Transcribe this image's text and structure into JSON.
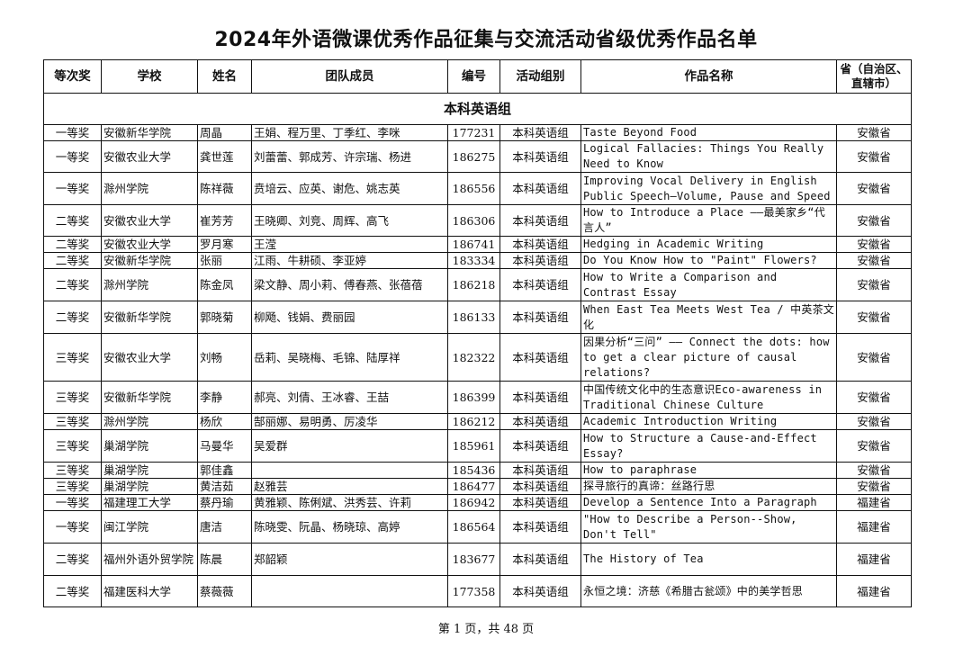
{
  "title": "2024年外语微课优秀作品征集与交流活动省级优秀作品名单",
  "headers": [
    "等次奖",
    "学校",
    "姓名",
    "团队成员",
    "编号",
    "活动组别",
    "作品名称",
    "省（自治区、直辖市）"
  ],
  "section": "本科英语组",
  "rows": [
    [
      "一等奖",
      "安徽新华学院",
      "周晶",
      "王娟、程万里、丁季红、李咪",
      "177231",
      "本科英语组",
      "Taste Beyond Food",
      "安徽省"
    ],
    [
      "一等奖",
      "安徽农业大学",
      "龚世莲",
      "刘蕾蕾、郭成芳、许宗瑞、杨进",
      "186275",
      "本科英语组",
      "Logical Fallacies: Things You Really Need to Know",
      "安徽省"
    ],
    [
      "一等奖",
      "滁州学院",
      "陈祥薇",
      "贲培云、应英、谢危、姚志英",
      "186556",
      "本科英语组",
      "Improving Vocal Delivery in English Public Speech—Volume, Pause and Speed",
      "安徽省"
    ],
    [
      "二等奖",
      "安徽农业大学",
      "崔芳芳",
      "王晓卿、刘竞、周辉、高飞",
      "186306",
      "本科英语组",
      "How to Introduce a Place ——最美家乡“代言人”",
      "安徽省"
    ],
    [
      "二等奖",
      "安徽农业大学",
      "罗月寒",
      "王滢",
      "186741",
      "本科英语组",
      "Hedging in Academic Writing",
      "安徽省"
    ],
    [
      "二等奖",
      "安徽新华学院",
      "张丽",
      "江雨、牛耕硕、李亚婷",
      "183334",
      "本科英语组",
      "Do You Know How to \"Paint\" Flowers?",
      "安徽省"
    ],
    [
      "二等奖",
      "滁州学院",
      "陈金凤",
      "梁文静、周小莉、傅春燕、张蓓蓓",
      "186218",
      "本科英语组",
      "How to Write a Comparison and Contrast Essay",
      "安徽省"
    ],
    [
      "二等奖",
      "安徽新华学院",
      "郭晓菊",
      "柳飏、钱娟、费丽园",
      "186133",
      "本科英语组",
      "When East Tea Meets West Tea / 中英茶文化",
      "安徽省"
    ],
    [
      "三等奖",
      "安徽农业大学",
      "刘畅",
      "岳莉、吴晓梅、毛锦、陆厚祥",
      "182322",
      "本科英语组",
      "因果分析“三问” —— Connect the dots: how to get a clear picture of causal relations?",
      "安徽省"
    ],
    [
      "三等奖",
      "安徽新华学院",
      "李静",
      "郝亮、刘倩、王冰睿、王喆",
      "186399",
      "本科英语组",
      "中国传统文化中的生态意识Eco-awareness in Traditional Chinese Culture",
      "安徽省"
    ],
    [
      "三等奖",
      "滁州学院",
      "杨欣",
      "郜丽娜、易明勇、厉凌华",
      "186212",
      "本科英语组",
      "Academic Introduction Writing",
      "安徽省"
    ],
    [
      "三等奖",
      "巢湖学院",
      "马曼华",
      "吴爱群",
      "185961",
      "本科英语组",
      "How to Structure a Cause-and-Effect Essay?",
      "安徽省"
    ],
    [
      "三等奖",
      "巢湖学院",
      "郭佳鑫",
      "",
      "185436",
      "本科英语组",
      "How to paraphrase",
      "安徽省"
    ],
    [
      "三等奖",
      "巢湖学院",
      "黄洁茹",
      "赵雅芸",
      "186477",
      "本科英语组",
      "探寻旅行的真谛：丝路行思",
      "安徽省"
    ],
    [
      "一等奖",
      "福建理工大学",
      "蔡丹瑜",
      "黄雅颖、陈俐斌、洪秀芸、许莉",
      "186942",
      "本科英语组",
      "Develop a Sentence Into a Paragraph",
      "福建省"
    ],
    [
      "一等奖",
      "闽江学院",
      "唐洁",
      "陈晓雯、阮晶、杨晓琼、高婷",
      "186564",
      "本科英语组",
      "\"How to Describe a Person--Show, Don't Tell\"",
      "福建省"
    ],
    [
      "二等奖",
      "福州外语外贸学院",
      "陈晨",
      "郑韶颖",
      "183677",
      "本科英语组",
      "The History of Tea",
      "福建省"
    ],
    [
      "二等奖",
      "福建医科大学",
      "蔡薇薇",
      "",
      "177358",
      "本科英语组",
      "永恒之境：济慈《希腊古瓮颂》中的美学哲思",
      "福建省"
    ]
  ],
  "footer": "第 1 页，共 48 页"
}
